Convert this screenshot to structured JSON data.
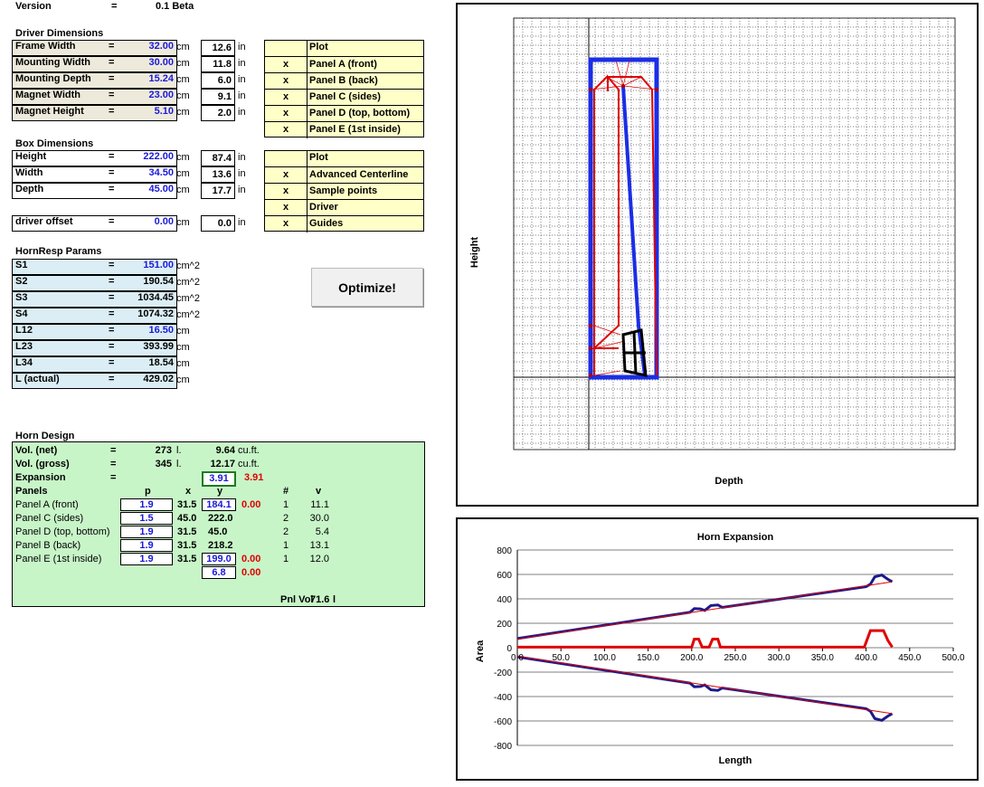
{
  "version": {
    "label": "Version",
    "eq": "=",
    "value": "0.1 Beta"
  },
  "driver": {
    "title": "Driver Dimensions",
    "rows": [
      {
        "label": "Frame Width",
        "eq": "=",
        "value": "32.00",
        "unit": "cm",
        "in": "12.6",
        "in_unit": "in"
      },
      {
        "label": "Mounting Width",
        "eq": "=",
        "value": "30.00",
        "unit": "cm",
        "in": "11.8",
        "in_unit": "in"
      },
      {
        "label": "Mounting Depth",
        "eq": "=",
        "value": "15.24",
        "unit": "cm",
        "in": "6.0",
        "in_unit": "in"
      },
      {
        "label": "Magnet Width",
        "eq": "=",
        "value": "23.00",
        "unit": "cm",
        "in": "9.1",
        "in_unit": "in"
      },
      {
        "label": "Magnet Height",
        "eq": "=",
        "value": "5.10",
        "unit": "cm",
        "in": "2.0",
        "in_unit": "in"
      }
    ],
    "plot": {
      "header": "Plot",
      "items": [
        {
          "mark": "x",
          "label": "Panel A (front)"
        },
        {
          "mark": "x",
          "label": "Panel B (back)"
        },
        {
          "mark": "x",
          "label": "Panel C (sides)"
        },
        {
          "mark": "x",
          "label": "Panel D (top, bottom)"
        },
        {
          "mark": "x",
          "label": "Panel E (1st inside)"
        }
      ]
    }
  },
  "box": {
    "title": "Box Dimensions",
    "rows": [
      {
        "label": "Height",
        "eq": "=",
        "value": "222.00",
        "unit": "cm",
        "in": "87.4",
        "in_unit": "in"
      },
      {
        "label": "Width",
        "eq": "=",
        "value": "34.50",
        "unit": "cm",
        "in": "13.6",
        "in_unit": "in"
      },
      {
        "label": "Depth",
        "eq": "=",
        "value": "45.00",
        "unit": "cm",
        "in": "17.7",
        "in_unit": "in"
      }
    ],
    "offset": {
      "label": "driver offset",
      "eq": "=",
      "value": "0.00",
      "unit": "cm",
      "in": "0.0",
      "in_unit": "in"
    },
    "plot": {
      "header": "Plot",
      "items": [
        {
          "mark": "x",
          "label": "Advanced Centerline"
        },
        {
          "mark": "x",
          "label": "Sample points"
        },
        {
          "mark": "x",
          "label": "Driver"
        },
        {
          "mark": "x",
          "label": "Guides"
        }
      ]
    }
  },
  "hornresp": {
    "title": "HornResp Params",
    "rows": [
      {
        "label": "S1",
        "eq": "=",
        "value": "151.00",
        "unit": "cm^2",
        "blue": true
      },
      {
        "label": "S2",
        "eq": "=",
        "value": "190.54",
        "unit": "cm^2",
        "blue": false
      },
      {
        "label": "S3",
        "eq": "=",
        "value": "1034.45",
        "unit": "cm^2",
        "blue": false
      },
      {
        "label": "S4",
        "eq": "=",
        "value": "1074.32",
        "unit": "cm^2",
        "blue": false
      },
      {
        "label": "L12",
        "eq": "=",
        "value": "16.50",
        "unit": "cm",
        "blue": true
      },
      {
        "label": "L23",
        "eq": "=",
        "value": "393.99",
        "unit": "cm",
        "blue": false
      },
      {
        "label": "L34",
        "eq": "=",
        "value": "18.54",
        "unit": "cm",
        "blue": false
      },
      {
        "label": "L (actual)",
        "eq": "=",
        "value": "429.02",
        "unit": "cm",
        "blue": false
      }
    ]
  },
  "optimize_label": "Optimize!",
  "horn": {
    "title": "Horn Design",
    "vol_net": {
      "label": "Vol. (net)",
      "eq": "=",
      "l": "273",
      "l_unit": "l.",
      "cuft": "9.64",
      "cuft_unit": "cu.ft."
    },
    "vol_gross": {
      "label": "Vol. (gross)",
      "eq": "=",
      "l": "345",
      "l_unit": "l.",
      "cuft": "12.17",
      "cuft_unit": "cu.ft."
    },
    "expansion": {
      "label": "Expansion",
      "eq": "=",
      "input": "3.91",
      "calc": "3.91"
    },
    "headers": {
      "panels": "Panels",
      "p": "p",
      "x": "x",
      "y": "y",
      "n": "#",
      "v": "v"
    },
    "panels": [
      {
        "name": "Panel A (front)",
        "p": "1.9",
        "x": "31.5",
        "y": "184.1",
        "y_input": true,
        "red": "0.00",
        "n": "1",
        "v": "11.1"
      },
      {
        "name": "Panel C (sides)",
        "p": "1.5",
        "x": "45.0",
        "y": "222.0",
        "y_input": false,
        "red": "",
        "n": "2",
        "v": "30.0"
      },
      {
        "name": "Panel D (top, bottom)",
        "p": "1.9",
        "x": "31.5",
        "y": "45.0",
        "y_input": false,
        "red": "",
        "n": "2",
        "v": "5.4"
      },
      {
        "name": "Panel B (back)",
        "p": "1.9",
        "x": "31.5",
        "y": "218.2",
        "y_input": false,
        "red": "",
        "n": "1",
        "v": "13.1"
      },
      {
        "name": "Panel E (1st inside)",
        "p": "1.9",
        "x": "31.5",
        "y": "199.0",
        "y_input": true,
        "red": "0.00",
        "n": "1",
        "v": "12.0"
      }
    ],
    "extra": {
      "y": "6.8",
      "red": "0.00"
    },
    "pnl_vol": {
      "label": "Pnl Vol",
      "value": "71.6",
      "unit": "l"
    }
  },
  "layout_chart": {
    "xlabel": "Depth",
    "ylabel": "Height"
  },
  "chart_data": {
    "type": "line",
    "title": "Horn Expansion",
    "xlabel": "Length",
    "ylabel": "Area",
    "xlim": [
      0,
      500
    ],
    "ylim": [
      -800,
      800
    ],
    "x_ticks": [
      "0.0",
      "50.0",
      "100.0",
      "150.0",
      "200.0",
      "250.0",
      "300.0",
      "350.0",
      "400.0",
      "450.0",
      "500.0"
    ],
    "y_ticks": [
      "800",
      "600",
      "400",
      "200",
      "0",
      "-200",
      "-400",
      "-600",
      "-800"
    ],
    "grid": true,
    "series": [
      {
        "color": "#1a1a8c",
        "x": [
          0,
          198,
          203,
          210,
          215,
          222,
          230,
          235,
          400,
          405,
          410,
          418,
          425,
          430
        ],
        "y": [
          75,
          290,
          320,
          318,
          305,
          345,
          350,
          330,
          500,
          520,
          580,
          595,
          560,
          540
        ]
      },
      {
        "color": "#1a1a8c",
        "x": [
          0,
          198,
          203,
          210,
          215,
          222,
          230,
          235,
          400,
          405,
          410,
          418,
          425,
          430
        ],
        "y": [
          -75,
          -290,
          -320,
          -318,
          -305,
          -345,
          -350,
          -330,
          -500,
          -520,
          -580,
          -595,
          -560,
          -540
        ]
      },
      {
        "color": "#e00000",
        "x": [
          0,
          200,
          203,
          208,
          212,
          220,
          224,
          230,
          233,
          398,
          405,
          410,
          420,
          425,
          430
        ],
        "y": [
          5,
          5,
          70,
          70,
          5,
          5,
          70,
          70,
          5,
          5,
          140,
          140,
          140,
          60,
          5
        ]
      },
      {
        "color": "#e00000",
        "x": [
          0,
          430
        ],
        "y": [
          70,
          540
        ]
      },
      {
        "color": "#e00000",
        "x": [
          0,
          430
        ],
        "y": [
          -70,
          -540
        ]
      }
    ]
  }
}
